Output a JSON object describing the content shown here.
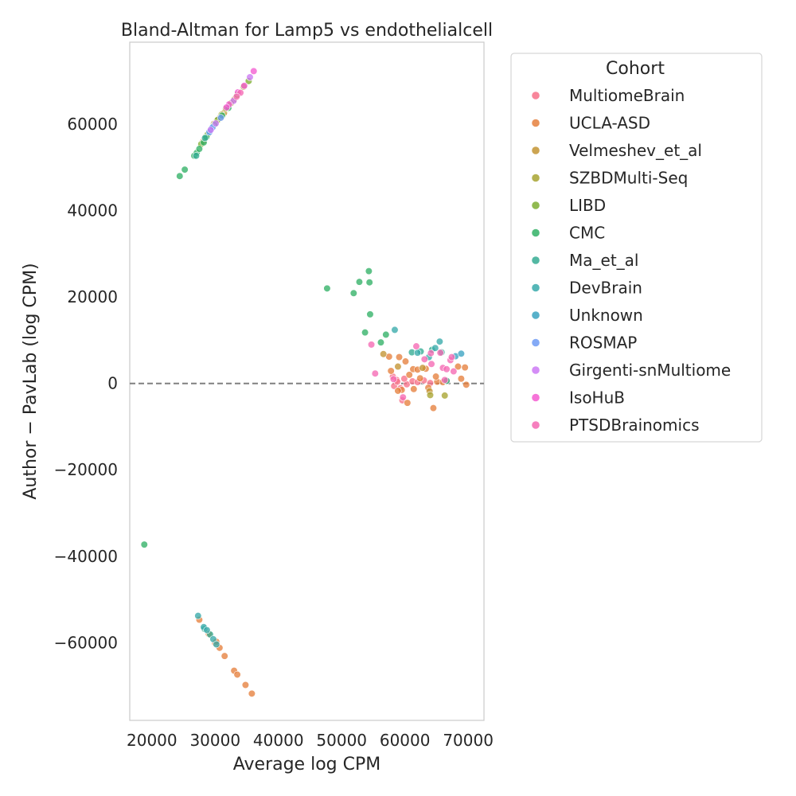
{
  "chart_data": {
    "type": "scatter",
    "title": "Bland-Altman for Lamp5 vs endothelialcell",
    "xlabel": "Average log CPM",
    "ylabel": "Author − PavLab (log CPM)",
    "xlim": [
      16500,
      72500
    ],
    "ylim": [
      -78000,
      79000
    ],
    "xticks": [
      20000,
      30000,
      40000,
      50000,
      60000,
      70000
    ],
    "xtick_labels": [
      "20000",
      "30000",
      "40000",
      "50000",
      "60000",
      "70000"
    ],
    "yticks": [
      -60000,
      -40000,
      -20000,
      0,
      20000,
      40000,
      60000
    ],
    "ytick_labels": [
      "−60000",
      "−40000",
      "−20000",
      "0",
      "20000",
      "40000",
      "60000"
    ],
    "reference_line": {
      "y": 0,
      "style": "dashed",
      "color": "#808080"
    },
    "grid": false,
    "legend": {
      "title": "Cohort",
      "placement": "outside-right-top"
    },
    "series": [
      {
        "name": "MultiomeBrain",
        "color": "#f77189",
        "points": [
          [
            58100,
            1600
          ],
          [
            58300,
            -600
          ],
          [
            58700,
            800
          ],
          [
            59300,
            -1100
          ],
          [
            59600,
            -3900
          ],
          [
            60300,
            -200
          ],
          [
            61200,
            500
          ],
          [
            62000,
            300
          ],
          [
            63000,
            700
          ],
          [
            64000,
            100
          ],
          [
            58800,
            400
          ],
          [
            59900,
            1100
          ]
        ]
      },
      {
        "name": "UCLA-ASD",
        "color": "#e5803d",
        "points": [
          [
            27500,
            -54700
          ],
          [
            29000,
            -58000
          ],
          [
            30000,
            -60100
          ],
          [
            30200,
            -59800
          ],
          [
            30700,
            -61200
          ],
          [
            31500,
            -63100
          ],
          [
            33000,
            -66500
          ],
          [
            33500,
            -67400
          ],
          [
            34800,
            -69800
          ],
          [
            35800,
            -71800
          ],
          [
            57500,
            6200
          ],
          [
            57800,
            2900
          ],
          [
            59100,
            6100
          ],
          [
            59500,
            -1500
          ],
          [
            60100,
            5100
          ],
          [
            60400,
            -4500
          ],
          [
            61300,
            3300
          ],
          [
            61400,
            -1300
          ],
          [
            62000,
            3200
          ],
          [
            62400,
            1200
          ],
          [
            63300,
            3400
          ],
          [
            63700,
            -1000
          ],
          [
            64500,
            -5700
          ],
          [
            65100,
            400
          ],
          [
            66000,
            300
          ],
          [
            68400,
            3900
          ],
          [
            68900,
            1100
          ],
          [
            69500,
            3700
          ],
          [
            69700,
            -300
          ],
          [
            58900,
            -1700
          ],
          [
            60700,
            2000
          ],
          [
            64900,
            1600
          ]
        ]
      },
      {
        "name": "Velmeshev_et_al",
        "color": "#c39432",
        "points": [
          [
            29800,
            60100
          ],
          [
            30300,
            60900
          ],
          [
            30800,
            61600
          ],
          [
            31400,
            62600
          ],
          [
            33000,
            65700
          ],
          [
            28100,
            56000
          ],
          [
            56600,
            6800
          ],
          [
            58900,
            3900
          ],
          [
            63900,
            -1800
          ],
          [
            62800,
            3600
          ]
        ]
      },
      {
        "name": "SZBDMulti-Seq",
        "color": "#a8a431",
        "points": [
          [
            28500,
            57100
          ],
          [
            31000,
            62200
          ],
          [
            31700,
            63600
          ],
          [
            32500,
            64900
          ],
          [
            34500,
            68700
          ],
          [
            64000,
            -2700
          ],
          [
            66300,
            -2800
          ],
          [
            66600,
            600
          ]
        ]
      },
      {
        "name": "LIBD",
        "color": "#7eae32",
        "points": [
          [
            28800,
            57600
          ],
          [
            30400,
            61000
          ],
          [
            33500,
            66800
          ],
          [
            35300,
            70000
          ],
          [
            27800,
            55400
          ]
        ]
      },
      {
        "name": "CMC",
        "color": "#32b166",
        "points": [
          [
            18800,
            -37300
          ],
          [
            24400,
            48000
          ],
          [
            25200,
            49500
          ],
          [
            26700,
            52700
          ],
          [
            27100,
            53400
          ],
          [
            27500,
            54300
          ],
          [
            28200,
            55800
          ],
          [
            28600,
            57000
          ],
          [
            29900,
            59900
          ],
          [
            31100,
            62000
          ],
          [
            32100,
            63800
          ],
          [
            47700,
            22000
          ],
          [
            51900,
            20900
          ],
          [
            52800,
            23500
          ],
          [
            53700,
            11800
          ],
          [
            54400,
            23400
          ],
          [
            54300,
            26000
          ],
          [
            54500,
            16000
          ],
          [
            56200,
            9500
          ],
          [
            57000,
            11300
          ]
        ]
      },
      {
        "name": "Ma_et_al",
        "color": "#35ac93",
        "points": [
          [
            27000,
            52700
          ],
          [
            28400,
            56800
          ],
          [
            29100,
            58300
          ],
          [
            28300,
            -56800
          ],
          [
            29200,
            -58100
          ],
          [
            61100,
            7200
          ],
          [
            62500,
            7400
          ],
          [
            64300,
            7800
          ],
          [
            66600,
            600
          ],
          [
            65800,
            7200
          ]
        ]
      },
      {
        "name": "DevBrain",
        "color": "#38aaab",
        "points": [
          [
            27300,
            -53800
          ],
          [
            28200,
            -56400
          ],
          [
            28700,
            -57100
          ],
          [
            29700,
            -59200
          ],
          [
            30200,
            -60400
          ],
          [
            58400,
            12400
          ],
          [
            62000,
            7100
          ],
          [
            63800,
            6100
          ],
          [
            64800,
            8200
          ],
          [
            65500,
            9700
          ]
        ]
      },
      {
        "name": "Unknown",
        "color": "#3ba3c1",
        "points": [
          [
            68000,
            6300
          ],
          [
            68900,
            6900
          ],
          [
            29400,
            59000
          ]
        ]
      },
      {
        "name": "ROSMAP",
        "color": "#6e9bf4",
        "points": [
          [
            29100,
            58200
          ],
          [
            29600,
            59300
          ],
          [
            30900,
            61500
          ]
        ]
      },
      {
        "name": "Girgenti-snMultiome",
        "color": "#cc79f4",
        "points": [
          [
            29300,
            58700
          ],
          [
            30100,
            60200
          ],
          [
            32900,
            65400
          ],
          [
            35500,
            70900
          ]
        ]
      },
      {
        "name": "IsoHuB",
        "color": "#f45cd1",
        "points": [
          [
            36100,
            72300
          ],
          [
            34600,
            68900
          ],
          [
            33600,
            67400
          ],
          [
            32200,
            64600
          ],
          [
            31800,
            63900
          ]
        ]
      },
      {
        "name": "PTSDBrainomics",
        "color": "#f569b3",
        "points": [
          [
            34000,
            67300
          ],
          [
            33400,
            66400
          ],
          [
            55300,
            2300
          ],
          [
            54700,
            9000
          ],
          [
            61800,
            8600
          ],
          [
            63100,
            5600
          ],
          [
            64200,
            4500
          ],
          [
            64100,
            7000
          ],
          [
            65600,
            7100
          ],
          [
            66000,
            3600
          ],
          [
            66600,
            3300
          ],
          [
            67200,
            5400
          ],
          [
            67400,
            6100
          ],
          [
            67700,
            2800
          ],
          [
            66300,
            800
          ],
          [
            59700,
            -3200
          ],
          [
            58200,
            1000
          ]
        ]
      }
    ]
  }
}
